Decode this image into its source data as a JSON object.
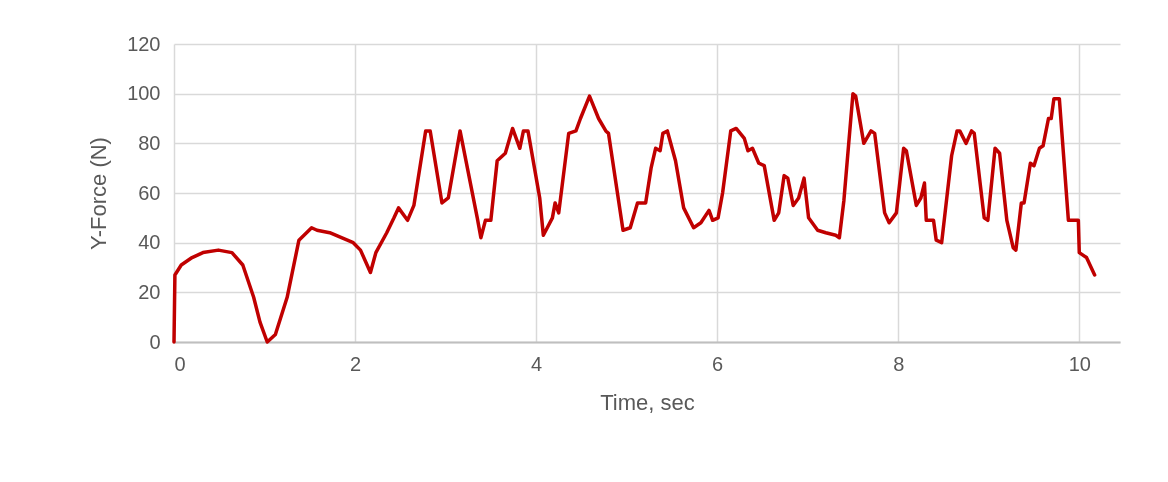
{
  "chart_data": {
    "type": "line",
    "xlabel": "Time, sec",
    "ylabel": "Y-Force (N)",
    "xlim": [
      0,
      10.45
    ],
    "xticks": [
      0,
      2,
      4,
      6,
      8,
      10
    ],
    "ylim": [
      0,
      120
    ],
    "yticks": [
      0,
      20,
      40,
      60,
      80,
      100,
      120
    ],
    "grid": true,
    "legend": false,
    "marker": "none",
    "line_style": "solid",
    "series": [
      {
        "color": "#c00000",
        "x": [
          0,
          0.01,
          0.08,
          0.2,
          0.32,
          0.49,
          0.64,
          0.76,
          0.88,
          0.95,
          1.03,
          1.12,
          1.25,
          1.38,
          1.52,
          1.58,
          1.72,
          1.85,
          1.98,
          2.06,
          2.17,
          2.23,
          2.35,
          2.43,
          2.48,
          2.58,
          2.65,
          2.78,
          2.83,
          2.96,
          3.03,
          3.16,
          3.35,
          3.39,
          3.44,
          3.5,
          3.57,
          3.66,
          3.74,
          3.82,
          3.86,
          3.91,
          4.04,
          4.08,
          4.18,
          4.21,
          4.25,
          4.36,
          4.44,
          4.49,
          4.59,
          4.69,
          4.77,
          4.8,
          4.96,
          5.04,
          5.12,
          5.21,
          5.27,
          5.32,
          5.37,
          5.4,
          5.45,
          5.54,
          5.63,
          5.74,
          5.82,
          5.91,
          5.95,
          6.01,
          6.06,
          6.15,
          6.21,
          6.3,
          6.34,
          6.39,
          6.46,
          6.52,
          6.63,
          6.68,
          6.74,
          6.78,
          6.84,
          6.9,
          6.96,
          7.01,
          7.11,
          7.2,
          7.31,
          7.35,
          7.4,
          7.5,
          7.53,
          7.62,
          7.7,
          7.74,
          7.85,
          7.9,
          7.98,
          8.06,
          8.09,
          8.2,
          8.25,
          8.29,
          8.31,
          8.39,
          8.42,
          8.48,
          8.59,
          8.65,
          8.68,
          8.75,
          8.81,
          8.84,
          8.95,
          8.99,
          9.07,
          9.12,
          9.2,
          9.27,
          9.3,
          9.36,
          9.39,
          9.46,
          9.5,
          9.56,
          9.6,
          9.66,
          9.69,
          9.72,
          9.78,
          9.88,
          9.95,
          9.99,
          10.0,
          10.08,
          10.17
        ],
        "values": [
          0,
          27,
          31,
          34,
          36,
          37,
          36,
          31,
          18,
          8,
          0,
          3,
          18,
          41,
          46,
          45,
          44,
          42,
          40,
          37,
          28,
          36,
          44,
          50,
          54,
          49,
          55,
          85,
          85,
          56,
          58,
          85,
          50,
          42,
          49,
          49,
          73,
          76,
          86,
          78,
          85,
          85,
          58,
          43,
          50,
          56,
          52,
          84,
          85,
          90,
          99,
          90,
          85,
          84,
          45,
          46,
          56,
          56,
          70,
          78,
          77,
          84,
          85,
          73,
          54,
          46,
          48,
          53,
          49,
          50,
          60,
          85,
          86,
          82,
          77,
          78,
          72,
          71,
          49,
          52,
          67,
          66,
          55,
          58,
          66,
          50,
          45,
          44,
          43,
          42,
          57,
          100,
          99,
          80,
          85,
          84,
          52,
          48,
          52,
          78,
          77,
          55,
          58,
          64,
          49,
          49,
          41,
          40,
          75,
          85,
          85,
          80,
          85,
          84,
          50,
          49,
          78,
          76,
          49,
          38,
          37,
          56,
          56,
          72,
          71,
          78,
          79,
          90,
          90,
          98,
          98,
          49,
          49,
          49,
          36,
          34,
          27
        ]
      }
    ]
  }
}
